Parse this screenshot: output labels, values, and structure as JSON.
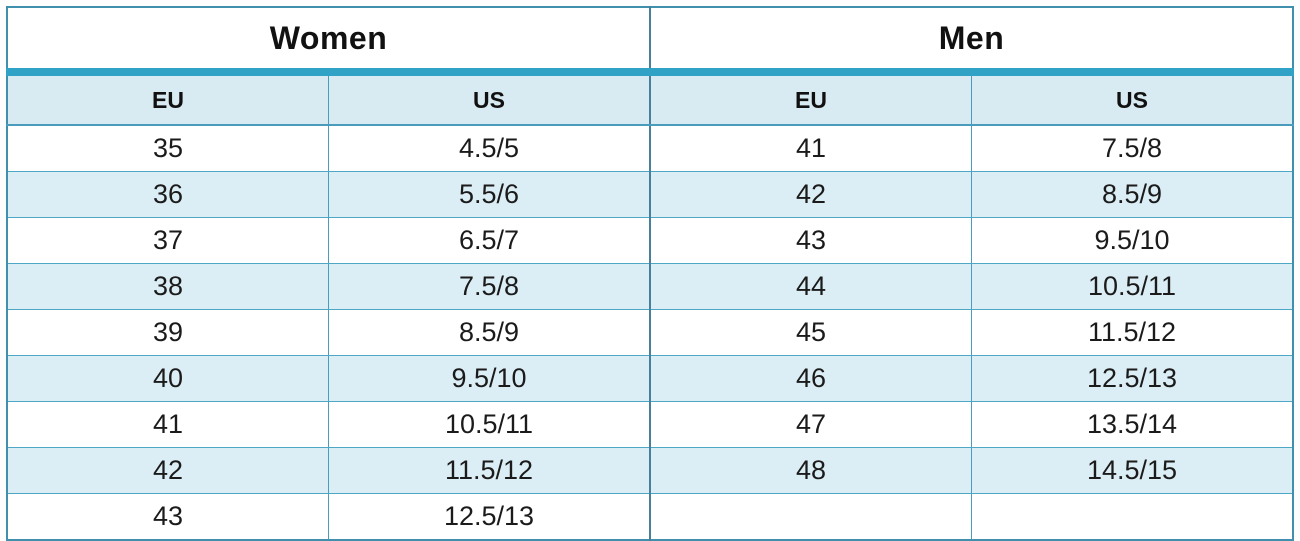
{
  "chart_data": [
    {
      "type": "table",
      "title": "Women",
      "columns": [
        "EU",
        "US"
      ],
      "rows": [
        [
          "35",
          "4.5/5"
        ],
        [
          "36",
          "5.5/6"
        ],
        [
          "37",
          "6.5/7"
        ],
        [
          "38",
          "7.5/8"
        ],
        [
          "39",
          "8.5/9"
        ],
        [
          "40",
          "9.5/10"
        ],
        [
          "41",
          "10.5/11"
        ],
        [
          "42",
          "11.5/12"
        ],
        [
          "43",
          "12.5/13"
        ]
      ]
    },
    {
      "type": "table",
      "title": "Men",
      "columns": [
        "EU",
        "US"
      ],
      "rows": [
        [
          "41",
          "7.5/8"
        ],
        [
          "42",
          "8.5/9"
        ],
        [
          "43",
          "9.5/10"
        ],
        [
          "44",
          "10.5/11"
        ],
        [
          "45",
          "11.5/12"
        ],
        [
          "46",
          "12.5/13"
        ],
        [
          "47",
          "13.5/14"
        ],
        [
          "48",
          "14.5/15"
        ],
        [
          "",
          ""
        ]
      ]
    }
  ],
  "style": {
    "accent_band_color": "#2fa2c6",
    "grid_line_color": "#4fa7c6",
    "section_divider_color": "#47809b",
    "stripe_fill_color": "#dceef5",
    "header_fill_color": "#d9ebf2",
    "layout": "banded rows, grid on, two side-by-side sub-tables"
  }
}
